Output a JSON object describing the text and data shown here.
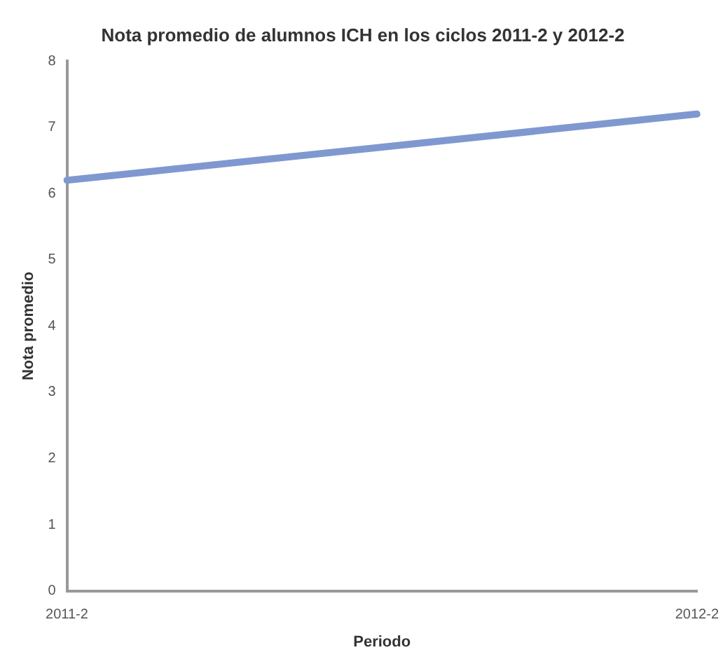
{
  "chart_data": {
    "type": "line",
    "title": "Nota promedio de alumnos ICH en los ciclos 2011-2 y 2012-2",
    "xlabel": "Periodo",
    "ylabel": "Nota promedio",
    "categories": [
      "2011-2",
      "2012-2"
    ],
    "series": [
      {
        "color": "#7f98d0",
        "values": [
          6.2,
          7.2
        ]
      }
    ],
    "ylim": [
      0,
      8
    ],
    "yticks": [
      0,
      1,
      2,
      3,
      4,
      5,
      6,
      7,
      8
    ],
    "grid": false,
    "legend": false,
    "marker": "none",
    "line_style": "solid"
  }
}
